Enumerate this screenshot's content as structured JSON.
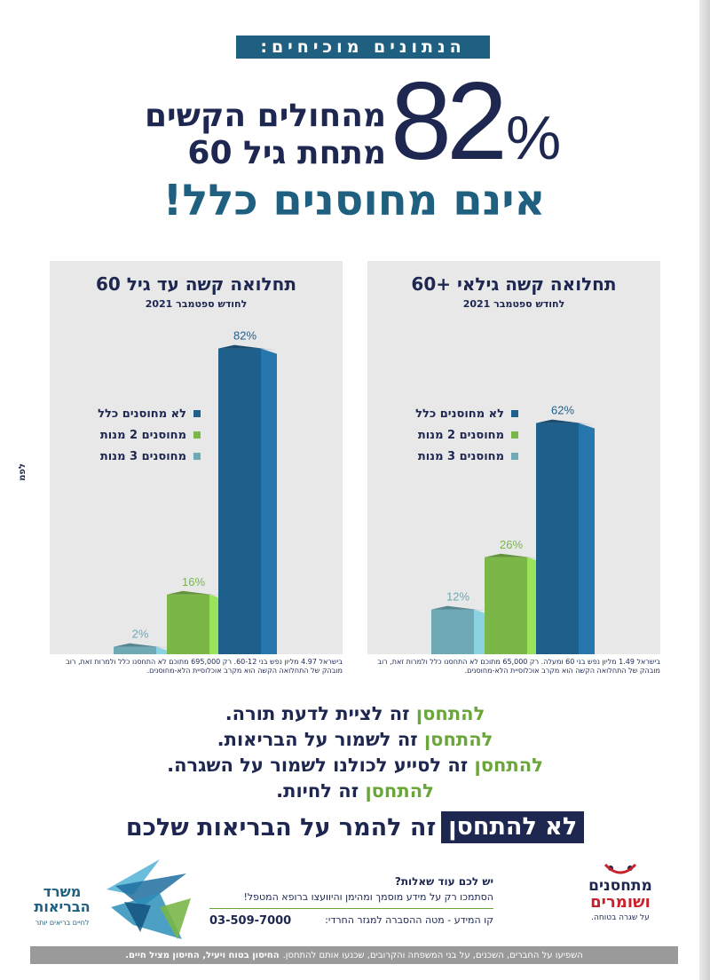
{
  "header": {
    "badge": "הנתונים מוכיחים:"
  },
  "hero": {
    "percent_number": "82",
    "percent_sign": "%",
    "line1": "מהחולים הקשים",
    "line2": "מתחת גיל 60",
    "line3": "אינם מחוסנים כלל!"
  },
  "side_label": "לפמ",
  "legend": {
    "items": [
      {
        "label": "לא מחוסנים כלל",
        "color": "#1f5f8b"
      },
      {
        "label": "מחוסנים 2 מנות",
        "color": "#7ab648"
      },
      {
        "label": "מחוסנים 3 מנות",
        "color": "#6fa9b5"
      }
    ]
  },
  "chart_data": [
    {
      "type": "bar",
      "title": "תחלואה קשה עד גיל 60",
      "subtitle": "לחודש ספטמבר 2021",
      "categories": [
        "לא מחוסנים כלל",
        "מחוסנים 2 מנות",
        "מחוסנים 3 מנות"
      ],
      "values": [
        82,
        16,
        2
      ],
      "value_labels": [
        "82%",
        "16%",
        "2%"
      ],
      "colors": [
        "#1f5f8b",
        "#7ab648",
        "#6fa9b5"
      ],
      "ylim": [
        0,
        100
      ],
      "legend_position": "left",
      "footnote": "בישראל 4.97 מליון נפש בני 60-12. רק 695,000 מתוכם לא התחסנו כלל ולמרות זאת, רוב מובהק של התחלואה הקשה הוא מקרב אוכלוסיית הלא-מחוסנים."
    },
    {
      "type": "bar",
      "title": "תחלואה קשה גילאי +60",
      "subtitle": "לחודש ספטמבר 2021",
      "categories": [
        "לא מחוסנים כלל",
        "מחוסנים 2 מנות",
        "מחוסנים 3 מנות"
      ],
      "values": [
        62,
        26,
        12
      ],
      "value_labels": [
        "62%",
        "26%",
        "12%"
      ],
      "colors": [
        "#1f5f8b",
        "#7ab648",
        "#6fa9b5"
      ],
      "ylim": [
        0,
        100
      ],
      "legend_position": "left",
      "footnote": "בישראל 1.49 מליון נפש בני 60 ומעלה. רק 65,000 מתוכם לא התחסנו כלל ולמרות זאת, רוב מובהק של התחלואה הקשה הוא מקרב אוכלוסיית הלא-מחוסנים."
    }
  ],
  "slogans": [
    {
      "highlight": "להתחסן",
      "rest": " זה לציית לדעת תורה."
    },
    {
      "highlight": "להתחסן",
      "rest": " זה לשמור על הבריאות."
    },
    {
      "highlight": "להתחסן",
      "rest": " זה לסייע לכולנו לשמור על השגרה."
    },
    {
      "highlight": "להתחסן",
      "rest": " זה לחיות."
    }
  ],
  "bottom_line": {
    "boxed": "לא להתחסן",
    "rest": "זה להמר על הבריאות שלכם"
  },
  "contact": {
    "question": "יש לכם עוד שאלות?",
    "advice": "הסתמכו רק על מידע מוסמך ומהימן והיוועצו ברופא המטפל!",
    "hotline": "קו המידע - מטה ההסברה למגזר החרדי:",
    "phone": "03-509-7000"
  },
  "ministry": {
    "name": "משרד הבריאות",
    "tagline": "לחיים בריאים יותר"
  },
  "vacc_logo": {
    "line1": "מתחסנים",
    "line2": "ושומרים",
    "line3": "על שגרה בטוחה."
  },
  "footer": {
    "text": "השפיעו על החברים, השכנים, על בני המשפחה והקרובים, שכנעו אותם להתחסן.",
    "bold": "החיסון בטוח ויעיל, החיסון מציל חיים."
  }
}
